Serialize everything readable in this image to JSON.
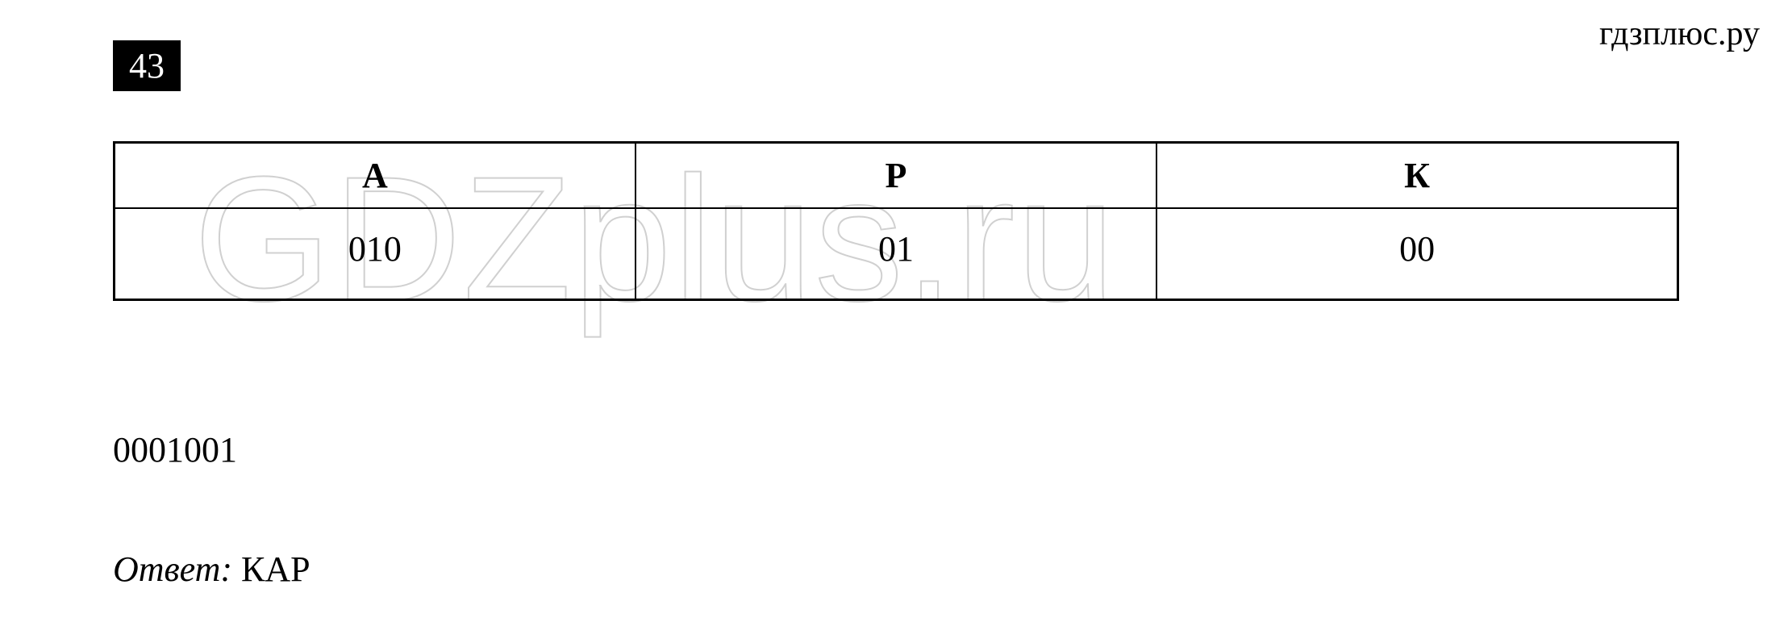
{
  "site_label": "гдзплюс.ру",
  "problem_number": "43",
  "watermark_text": "GDZplus.ru",
  "table": {
    "columns": [
      "А",
      "Р",
      "К"
    ],
    "rows": [
      [
        "010",
        "01",
        "00"
      ]
    ],
    "border_color": "#000000",
    "header_fontsize": 44,
    "cell_fontsize": 44,
    "header_fontweight": "bold",
    "cell_fontweight": "normal"
  },
  "sequence": "0001001",
  "answer": {
    "label": "Ответ:",
    "value": "КАР"
  },
  "colors": {
    "background": "#ffffff",
    "text": "#000000",
    "badge_bg": "#000000",
    "badge_text": "#ffffff",
    "watermark_stroke": "#d0d0d0"
  },
  "typography": {
    "body_font": "Times New Roman",
    "watermark_font": "Arial",
    "base_fontsize": 44,
    "watermark_fontsize": 220
  }
}
